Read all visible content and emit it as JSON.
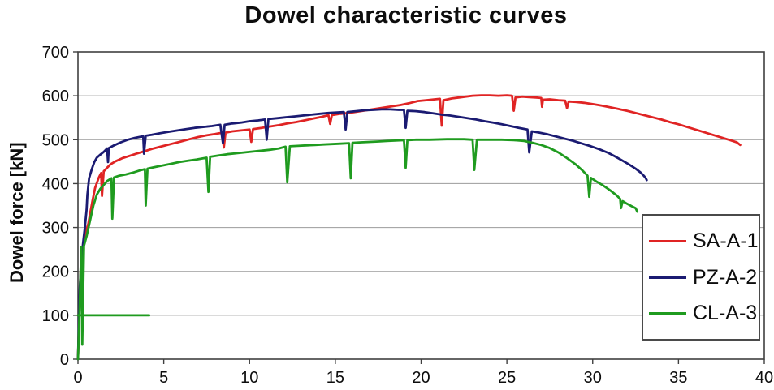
{
  "title": "Dowel characteristic curves",
  "y_axis_label": "Dowel force [kN]",
  "legend": {
    "entries": [
      {
        "label": "SA-A-1",
        "color": "#e02424"
      },
      {
        "label": "PZ-A-2",
        "color": "#1b1b72"
      },
      {
        "label": "CL-A-3",
        "color": "#1f9b1f"
      }
    ]
  },
  "chart_data": {
    "type": "line",
    "title": "Dowel characteristic curves",
    "xlabel": "",
    "ylabel": "Dowel force [kN]",
    "xlim": [
      0,
      40
    ],
    "ylim": [
      0,
      700
    ],
    "xticks": [
      0,
      5,
      10,
      15,
      20,
      25,
      30,
      35,
      40
    ],
    "yticks": [
      0,
      100,
      200,
      300,
      400,
      500,
      600,
      700
    ],
    "grid": "horizontal gridlines only",
    "legend_position": "overlay bottom-right",
    "series": [
      {
        "name": "SA-A-1",
        "color": "#e02424",
        "points": [
          [
            0,
            0
          ],
          [
            0.1,
            140
          ],
          [
            0.15,
            200
          ],
          [
            0.2,
            150
          ],
          [
            0.25,
            230
          ],
          [
            0.3,
            262
          ],
          [
            0.4,
            280
          ],
          [
            0.5,
            296
          ],
          [
            0.6,
            308
          ],
          [
            0.7,
            330
          ],
          [
            0.85,
            362
          ],
          [
            1.0,
            390
          ],
          [
            1.2,
            412
          ],
          [
            1.35,
            424
          ],
          [
            1.4,
            372
          ],
          [
            1.5,
            428
          ],
          [
            1.7,
            436
          ],
          [
            1.9,
            444
          ],
          [
            2.2,
            451
          ],
          [
            2.6,
            458
          ],
          [
            3.0,
            463
          ],
          [
            3.4,
            468
          ],
          [
            3.9,
            474
          ],
          [
            4.4,
            480
          ],
          [
            5.0,
            486
          ],
          [
            5.5,
            491
          ],
          [
            6.0,
            496
          ],
          [
            6.5,
            501
          ],
          [
            7.0,
            506
          ],
          [
            7.5,
            510
          ],
          [
            8.0,
            513
          ],
          [
            8.4,
            516
          ],
          [
            8.5,
            482
          ],
          [
            8.6,
            516
          ],
          [
            9.0,
            519
          ],
          [
            9.5,
            521
          ],
          [
            10.0,
            523
          ],
          [
            10.1,
            495
          ],
          [
            10.2,
            524
          ],
          [
            10.7,
            527
          ],
          [
            11.2,
            530
          ],
          [
            11.7,
            533
          ],
          [
            12.2,
            537
          ],
          [
            12.7,
            540
          ],
          [
            13.2,
            544
          ],
          [
            13.7,
            548
          ],
          [
            14.2,
            552
          ],
          [
            14.6,
            556
          ],
          [
            14.7,
            536
          ],
          [
            14.8,
            556
          ],
          [
            15.3,
            559
          ],
          [
            15.8,
            561
          ],
          [
            16.3,
            564
          ],
          [
            16.8,
            567
          ],
          [
            17.3,
            570
          ],
          [
            17.8,
            573
          ],
          [
            18.3,
            576
          ],
          [
            18.8,
            579
          ],
          [
            19.3,
            583
          ],
          [
            19.8,
            588
          ],
          [
            20.3,
            590
          ],
          [
            20.8,
            592
          ],
          [
            21.1,
            593
          ],
          [
            21.2,
            532
          ],
          [
            21.3,
            590
          ],
          [
            21.8,
            594
          ],
          [
            22.2,
            596
          ],
          [
            22.6,
            598
          ],
          [
            23.0,
            600
          ],
          [
            23.5,
            601
          ],
          [
            24.0,
            601
          ],
          [
            24.5,
            600
          ],
          [
            25.0,
            601
          ],
          [
            25.3,
            600
          ],
          [
            25.4,
            566
          ],
          [
            25.5,
            596
          ],
          [
            25.9,
            598
          ],
          [
            26.3,
            597
          ],
          [
            26.7,
            596
          ],
          [
            27.0,
            595
          ],
          [
            27.05,
            575
          ],
          [
            27.1,
            591
          ],
          [
            27.5,
            592
          ],
          [
            28.0,
            590
          ],
          [
            28.4,
            589
          ],
          [
            28.5,
            572
          ],
          [
            28.6,
            587
          ],
          [
            29.0,
            586
          ],
          [
            29.5,
            584
          ],
          [
            30.0,
            581
          ],
          [
            30.5,
            578
          ],
          [
            31.0,
            574
          ],
          [
            31.5,
            570
          ],
          [
            32.0,
            566
          ],
          [
            32.5,
            561
          ],
          [
            33.0,
            556
          ],
          [
            33.5,
            551
          ],
          [
            34.0,
            546
          ],
          [
            34.5,
            540
          ],
          [
            35.0,
            535
          ],
          [
            35.5,
            529
          ],
          [
            36.0,
            523
          ],
          [
            36.5,
            517
          ],
          [
            37.0,
            511
          ],
          [
            37.5,
            505
          ],
          [
            38.0,
            499
          ],
          [
            38.4,
            494
          ],
          [
            38.6,
            488
          ]
        ]
      },
      {
        "name": "PZ-A-2",
        "color": "#1b1b72",
        "points": [
          [
            0,
            0
          ],
          [
            0.1,
            160
          ],
          [
            0.2,
            225
          ],
          [
            0.3,
            265
          ],
          [
            0.4,
            300
          ],
          [
            0.5,
            340
          ],
          [
            0.55,
            375
          ],
          [
            0.65,
            412
          ],
          [
            0.8,
            432
          ],
          [
            0.95,
            449
          ],
          [
            1.1,
            459
          ],
          [
            1.3,
            466
          ],
          [
            1.5,
            472
          ],
          [
            1.7,
            480
          ],
          [
            1.75,
            449
          ],
          [
            1.8,
            481
          ],
          [
            2.1,
            487
          ],
          [
            2.5,
            494
          ],
          [
            2.9,
            500
          ],
          [
            3.3,
            504
          ],
          [
            3.8,
            508
          ],
          [
            3.85,
            468
          ],
          [
            3.95,
            509
          ],
          [
            4.3,
            511
          ],
          [
            4.8,
            515
          ],
          [
            5.3,
            518
          ],
          [
            5.8,
            521
          ],
          [
            6.3,
            524
          ],
          [
            6.8,
            527
          ],
          [
            7.3,
            529
          ],
          [
            7.8,
            531
          ],
          [
            8.3,
            534
          ],
          [
            8.45,
            492
          ],
          [
            8.55,
            534
          ],
          [
            9.0,
            537
          ],
          [
            9.5,
            539
          ],
          [
            10.0,
            542
          ],
          [
            10.5,
            544
          ],
          [
            10.9,
            546
          ],
          [
            11.0,
            500
          ],
          [
            11.1,
            547
          ],
          [
            11.6,
            549
          ],
          [
            12.1,
            551
          ],
          [
            12.6,
            553
          ],
          [
            13.1,
            555
          ],
          [
            13.6,
            557
          ],
          [
            14.1,
            559
          ],
          [
            14.6,
            561
          ],
          [
            15.1,
            562
          ],
          [
            15.5,
            563
          ],
          [
            15.6,
            523
          ],
          [
            15.7,
            563
          ],
          [
            16.2,
            565
          ],
          [
            16.7,
            567
          ],
          [
            17.2,
            568
          ],
          [
            17.7,
            569
          ],
          [
            18.2,
            569
          ],
          [
            18.7,
            568
          ],
          [
            19.0,
            568
          ],
          [
            19.1,
            527
          ],
          [
            19.2,
            566
          ],
          [
            19.7,
            565
          ],
          [
            20.2,
            563
          ],
          [
            20.7,
            560
          ],
          [
            21.2,
            557
          ],
          [
            21.7,
            555
          ],
          [
            22.2,
            552
          ],
          [
            22.7,
            549
          ],
          [
            23.2,
            546
          ],
          [
            23.7,
            542
          ],
          [
            24.2,
            539
          ],
          [
            24.7,
            535
          ],
          [
            25.2,
            531
          ],
          [
            25.7,
            527
          ],
          [
            26.2,
            523
          ],
          [
            26.3,
            471
          ],
          [
            26.45,
            519
          ],
          [
            26.9,
            516
          ],
          [
            27.4,
            512
          ],
          [
            27.9,
            507
          ],
          [
            28.4,
            502
          ],
          [
            28.9,
            497
          ],
          [
            29.4,
            491
          ],
          [
            29.9,
            485
          ],
          [
            30.4,
            478
          ],
          [
            30.9,
            470
          ],
          [
            31.3,
            462
          ],
          [
            31.7,
            453
          ],
          [
            32.1,
            444
          ],
          [
            32.5,
            434
          ],
          [
            32.8,
            425
          ],
          [
            33.0,
            417
          ],
          [
            33.1,
            412
          ],
          [
            33.15,
            408
          ]
        ]
      },
      {
        "name": "CL-A-3",
        "color": "#1f9b1f",
        "points": [
          [
            0,
            0
          ],
          [
            0.1,
            120
          ],
          [
            0.15,
            200
          ],
          [
            0.2,
            255
          ],
          [
            0.25,
            33
          ],
          [
            0.35,
            258
          ],
          [
            0.5,
            280
          ],
          [
            0.7,
            315
          ],
          [
            0.9,
            350
          ],
          [
            1.1,
            375
          ],
          [
            1.3,
            388
          ],
          [
            1.5,
            397
          ],
          [
            1.7,
            406
          ],
          [
            1.95,
            412
          ],
          [
            2.0,
            320
          ],
          [
            2.1,
            414
          ],
          [
            2.4,
            418
          ],
          [
            2.8,
            421
          ],
          [
            3.2,
            425
          ],
          [
            3.6,
            430
          ],
          [
            3.9,
            433
          ],
          [
            3.95,
            350
          ],
          [
            4.05,
            434
          ],
          [
            4.4,
            437
          ],
          [
            4.9,
            441
          ],
          [
            5.4,
            445
          ],
          [
            5.9,
            449
          ],
          [
            6.4,
            452
          ],
          [
            6.9,
            455
          ],
          [
            7.5,
            459
          ],
          [
            7.6,
            381
          ],
          [
            7.7,
            461
          ],
          [
            8.2,
            464
          ],
          [
            8.7,
            467
          ],
          [
            9.2,
            469
          ],
          [
            9.7,
            471
          ],
          [
            10.2,
            473
          ],
          [
            10.7,
            475
          ],
          [
            11.2,
            477
          ],
          [
            11.7,
            480
          ],
          [
            12.1,
            484
          ],
          [
            12.2,
            403
          ],
          [
            12.35,
            485
          ],
          [
            12.8,
            486
          ],
          [
            13.3,
            487
          ],
          [
            13.8,
            488
          ],
          [
            14.3,
            489
          ],
          [
            14.8,
            490
          ],
          [
            15.3,
            491
          ],
          [
            15.8,
            492
          ],
          [
            15.9,
            412
          ],
          [
            16.0,
            493
          ],
          [
            16.5,
            494
          ],
          [
            17.0,
            495
          ],
          [
            17.5,
            496
          ],
          [
            18.0,
            497
          ],
          [
            18.5,
            498
          ],
          [
            19.0,
            499
          ],
          [
            19.1,
            436
          ],
          [
            19.2,
            499
          ],
          [
            19.7,
            500
          ],
          [
            20.5,
            500
          ],
          [
            21.5,
            501
          ],
          [
            22.5,
            501
          ],
          [
            23.0,
            500
          ],
          [
            23.1,
            431
          ],
          [
            23.25,
            500
          ],
          [
            24.0,
            500
          ],
          [
            24.7,
            500
          ],
          [
            25.4,
            499
          ],
          [
            26.0,
            497
          ],
          [
            26.5,
            493
          ],
          [
            27.0,
            488
          ],
          [
            27.5,
            481
          ],
          [
            28.0,
            471
          ],
          [
            28.5,
            458
          ],
          [
            29.0,
            444
          ],
          [
            29.4,
            430
          ],
          [
            29.7,
            418
          ],
          [
            29.8,
            370
          ],
          [
            29.9,
            413
          ],
          [
            30.2,
            405
          ],
          [
            30.6,
            396
          ],
          [
            31.0,
            385
          ],
          [
            31.4,
            373
          ],
          [
            31.6,
            365
          ],
          [
            31.65,
            344
          ],
          [
            31.75,
            360
          ],
          [
            32.0,
            354
          ],
          [
            32.3,
            348
          ],
          [
            32.5,
            344
          ],
          [
            32.6,
            336
          ]
        ],
        "extra_segments": [
          [
            [
              0,
              100
            ],
            [
              4.15,
              100
            ]
          ]
        ]
      }
    ]
  }
}
